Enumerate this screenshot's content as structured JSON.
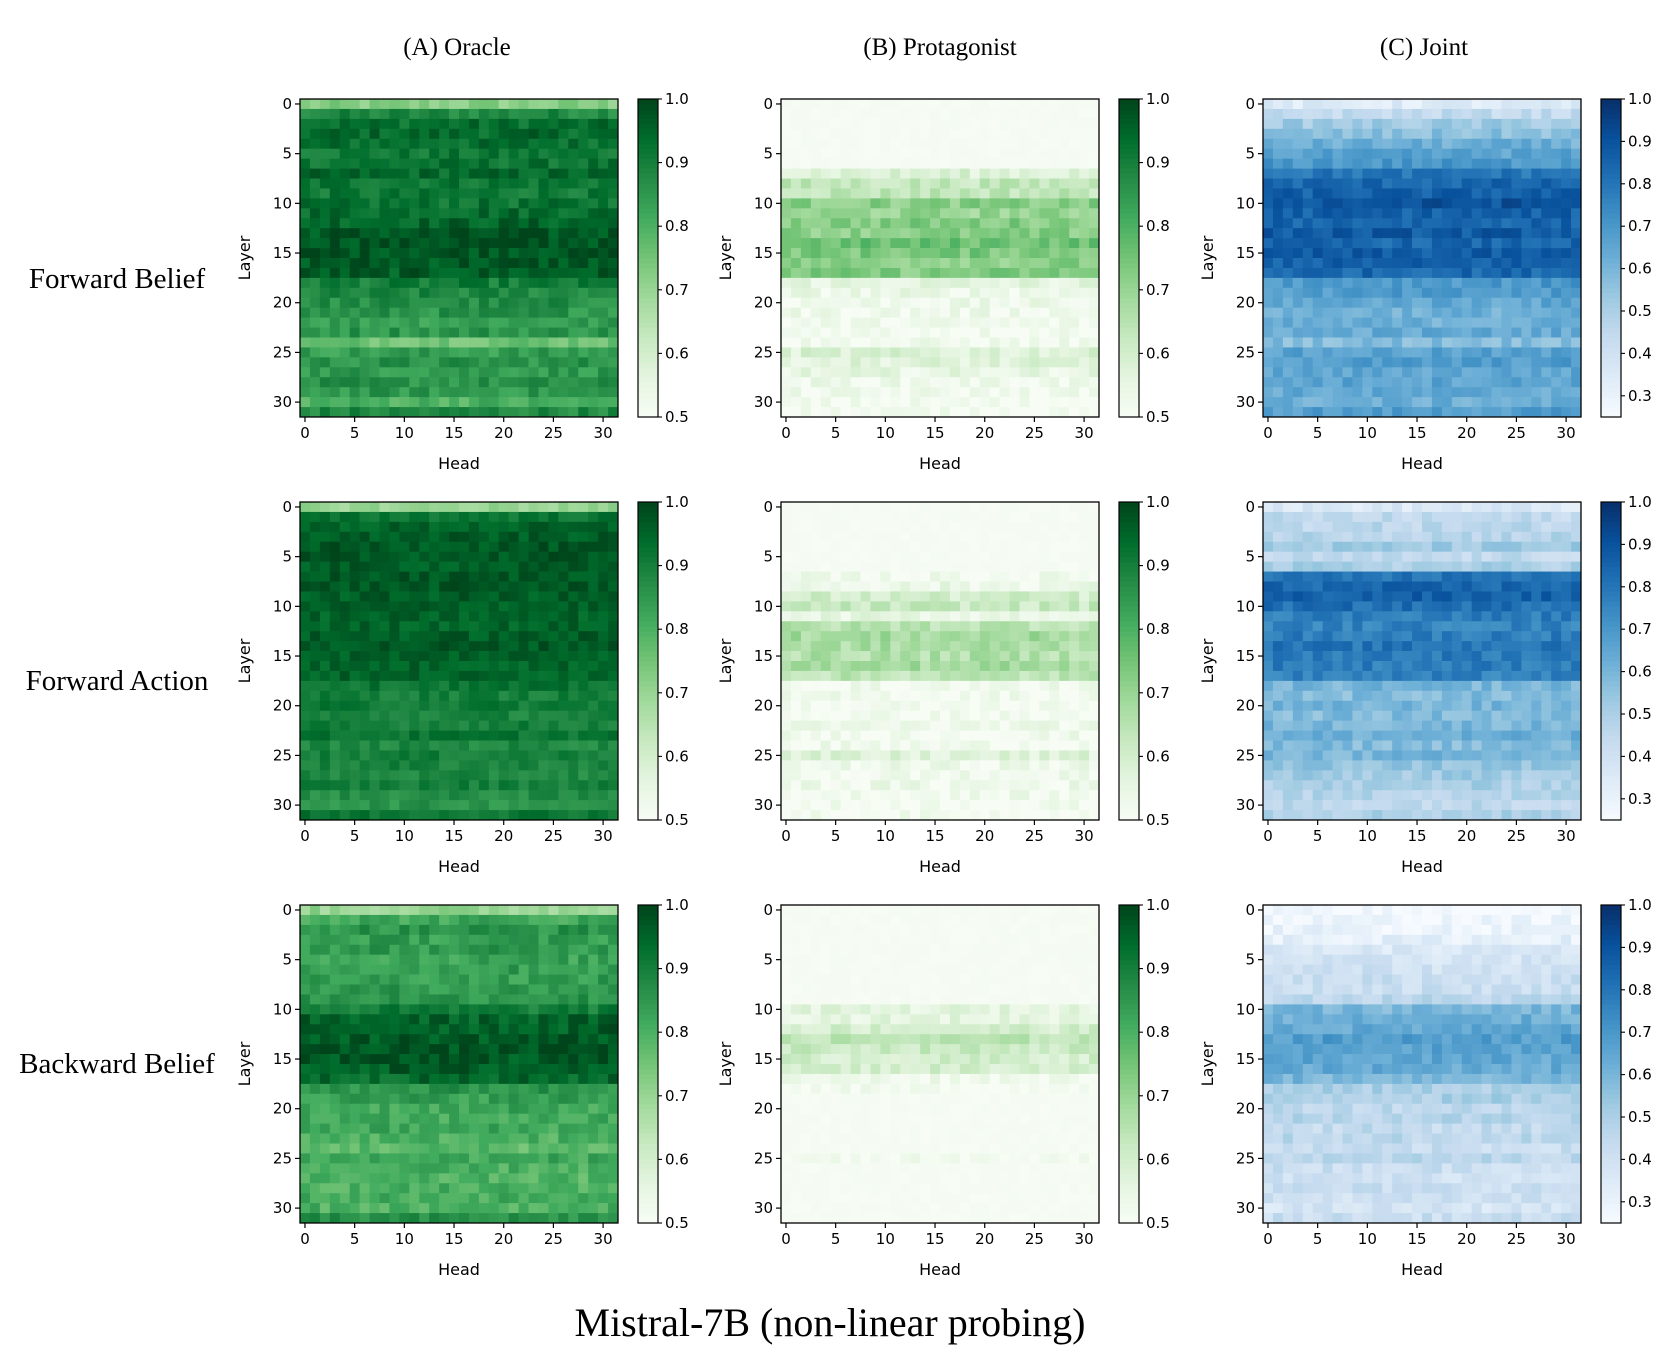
{
  "figure": {
    "title": "Mistral-7B (non-linear probing)",
    "columns": [
      "(A) Oracle",
      "(B) Protagonist",
      "(C) Joint"
    ],
    "rows": [
      "Forward Belief",
      "Forward Action",
      "Backward Belief"
    ]
  },
  "colors": {
    "greens": [
      "#f7fcf5",
      "#e5f5e0",
      "#c7e9c0",
      "#a1d99b",
      "#74c476",
      "#41ab5d",
      "#238b45",
      "#006d2c",
      "#00441b"
    ],
    "blues": [
      "#f7fbff",
      "#deebf7",
      "#c6dbef",
      "#9ecae1",
      "#6baed6",
      "#4292c6",
      "#2171b5",
      "#08519c",
      "#08306b"
    ]
  },
  "chart_data": [
    {
      "type": "heatmap",
      "row": "Forward Belief",
      "column": "(A) Oracle",
      "xlabel": "Head",
      "ylabel": "Layer",
      "xticks": [
        0,
        5,
        10,
        15,
        20,
        25,
        30
      ],
      "yticks": [
        0,
        5,
        10,
        15,
        20,
        25,
        30
      ],
      "colormap": "greens",
      "vmin": 0.5,
      "vmax": 1.0,
      "cbar_ticks": [
        "0.5",
        "0.6",
        "0.7",
        "0.8",
        "0.9",
        "1.0"
      ],
      "layer_means": [
        0.72,
        0.88,
        0.93,
        0.94,
        0.93,
        0.91,
        0.92,
        0.94,
        0.92,
        0.91,
        0.92,
        0.94,
        0.95,
        0.97,
        0.98,
        0.98,
        0.97,
        0.96,
        0.9,
        0.88,
        0.87,
        0.86,
        0.84,
        0.86,
        0.76,
        0.84,
        0.86,
        0.85,
        0.86,
        0.85,
        0.8,
        0.88
      ],
      "noise": 0.04
    },
    {
      "type": "heatmap",
      "row": "Forward Belief",
      "column": "(B) Protagonist",
      "xlabel": "Head",
      "ylabel": "Layer",
      "xticks": [
        0,
        5,
        10,
        15,
        20,
        25,
        30
      ],
      "yticks": [
        0,
        5,
        10,
        15,
        20,
        25,
        30
      ],
      "colormap": "greens",
      "vmin": 0.5,
      "vmax": 1.0,
      "cbar_ticks": [
        "0.5",
        "0.6",
        "0.7",
        "0.8",
        "0.9",
        "1.0"
      ],
      "layer_means": [
        0.5,
        0.5,
        0.5,
        0.5,
        0.5,
        0.5,
        0.5,
        0.58,
        0.63,
        0.64,
        0.72,
        0.7,
        0.73,
        0.72,
        0.76,
        0.74,
        0.72,
        0.73,
        0.56,
        0.54,
        0.53,
        0.53,
        0.52,
        0.52,
        0.52,
        0.58,
        0.57,
        0.55,
        0.53,
        0.52,
        0.51,
        0.51
      ],
      "noise": 0.04
    },
    {
      "type": "heatmap",
      "row": "Forward Belief",
      "column": "(C) Joint",
      "xlabel": "Head",
      "ylabel": "Layer",
      "xticks": [
        0,
        5,
        10,
        15,
        20,
        25,
        30
      ],
      "yticks": [
        0,
        5,
        10,
        15,
        20,
        25,
        30
      ],
      "colormap": "blues",
      "vmin": 0.25,
      "vmax": 1.0,
      "cbar_ticks": [
        "0.3",
        "0.4",
        "0.5",
        "0.6",
        "0.7",
        "0.8",
        "0.9",
        "1.0"
      ],
      "layer_means": [
        0.34,
        0.44,
        0.52,
        0.56,
        0.62,
        0.66,
        0.7,
        0.8,
        0.84,
        0.86,
        0.9,
        0.86,
        0.85,
        0.88,
        0.84,
        0.87,
        0.86,
        0.84,
        0.7,
        0.68,
        0.65,
        0.62,
        0.62,
        0.64,
        0.58,
        0.66,
        0.68,
        0.65,
        0.66,
        0.64,
        0.62,
        0.68
      ],
      "noise": 0.05
    },
    {
      "type": "heatmap",
      "row": "Forward Action",
      "column": "(A) Oracle",
      "xlabel": "Head",
      "ylabel": "Layer",
      "xticks": [
        0,
        5,
        10,
        15,
        20,
        25,
        30
      ],
      "yticks": [
        0,
        5,
        10,
        15,
        20,
        25,
        30
      ],
      "colormap": "greens",
      "vmin": 0.5,
      "vmax": 1.0,
      "cbar_ticks": [
        "0.5",
        "0.6",
        "0.7",
        "0.8",
        "0.9",
        "1.0"
      ],
      "layer_means": [
        0.7,
        0.92,
        0.95,
        0.96,
        0.97,
        0.97,
        0.96,
        0.97,
        0.97,
        0.96,
        0.96,
        0.95,
        0.95,
        0.96,
        0.97,
        0.96,
        0.95,
        0.95,
        0.92,
        0.9,
        0.91,
        0.89,
        0.9,
        0.92,
        0.88,
        0.9,
        0.89,
        0.88,
        0.9,
        0.87,
        0.86,
        0.92
      ],
      "noise": 0.03
    },
    {
      "type": "heatmap",
      "row": "Forward Action",
      "column": "(B) Protagonist",
      "xlabel": "Head",
      "ylabel": "Layer",
      "xticks": [
        0,
        5,
        10,
        15,
        20,
        25,
        30
      ],
      "yticks": [
        0,
        5,
        10,
        15,
        20,
        25,
        30
      ],
      "colormap": "greens",
      "vmin": 0.5,
      "vmax": 1.0,
      "cbar_ticks": [
        "0.5",
        "0.6",
        "0.7",
        "0.8",
        "0.9",
        "1.0"
      ],
      "layer_means": [
        0.5,
        0.5,
        0.5,
        0.5,
        0.5,
        0.5,
        0.5,
        0.52,
        0.54,
        0.6,
        0.62,
        0.55,
        0.65,
        0.68,
        0.67,
        0.66,
        0.68,
        0.64,
        0.52,
        0.52,
        0.51,
        0.51,
        0.53,
        0.52,
        0.52,
        0.57,
        0.53,
        0.52,
        0.53,
        0.52,
        0.51,
        0.51
      ],
      "noise": 0.04
    },
    {
      "type": "heatmap",
      "row": "Forward Action",
      "column": "(C) Joint",
      "xlabel": "Head",
      "ylabel": "Layer",
      "xticks": [
        0,
        5,
        10,
        15,
        20,
        25,
        30
      ],
      "yticks": [
        0,
        5,
        10,
        15,
        20,
        25,
        30
      ],
      "colormap": "blues",
      "vmin": 0.25,
      "vmax": 1.0,
      "cbar_ticks": [
        "0.3",
        "0.4",
        "0.5",
        "0.6",
        "0.7",
        "0.8",
        "0.9",
        "1.0"
      ],
      "layer_means": [
        0.36,
        0.44,
        0.46,
        0.48,
        0.52,
        0.44,
        0.5,
        0.8,
        0.84,
        0.86,
        0.82,
        0.78,
        0.76,
        0.78,
        0.8,
        0.79,
        0.78,
        0.76,
        0.6,
        0.58,
        0.6,
        0.58,
        0.6,
        0.62,
        0.58,
        0.6,
        0.55,
        0.52,
        0.5,
        0.48,
        0.46,
        0.5
      ],
      "noise": 0.05
    },
    {
      "type": "heatmap",
      "row": "Backward Belief",
      "column": "(A) Oracle",
      "xlabel": "Head",
      "ylabel": "Layer",
      "xticks": [
        0,
        5,
        10,
        15,
        20,
        25,
        30
      ],
      "yticks": [
        0,
        5,
        10,
        15,
        20,
        25,
        30
      ],
      "colormap": "greens",
      "vmin": 0.5,
      "vmax": 1.0,
      "cbar_ticks": [
        "0.5",
        "0.6",
        "0.7",
        "0.8",
        "0.9",
        "1.0"
      ],
      "layer_means": [
        0.7,
        0.82,
        0.86,
        0.84,
        0.85,
        0.83,
        0.84,
        0.84,
        0.85,
        0.86,
        0.9,
        0.95,
        0.96,
        0.97,
        0.98,
        0.97,
        0.96,
        0.94,
        0.86,
        0.84,
        0.82,
        0.81,
        0.82,
        0.8,
        0.78,
        0.82,
        0.8,
        0.79,
        0.8,
        0.81,
        0.8,
        0.86
      ],
      "noise": 0.04
    },
    {
      "type": "heatmap",
      "row": "Backward Belief",
      "column": "(B) Protagonist",
      "xlabel": "Head",
      "ylabel": "Layer",
      "xticks": [
        0,
        5,
        10,
        15,
        20,
        25,
        30
      ],
      "yticks": [
        0,
        5,
        10,
        15,
        20,
        25,
        30
      ],
      "colormap": "greens",
      "vmin": 0.5,
      "vmax": 1.0,
      "cbar_ticks": [
        "0.5",
        "0.6",
        "0.7",
        "0.8",
        "0.9",
        "1.0"
      ],
      "layer_means": [
        0.5,
        0.5,
        0.5,
        0.5,
        0.5,
        0.5,
        0.5,
        0.5,
        0.5,
        0.5,
        0.56,
        0.56,
        0.6,
        0.64,
        0.62,
        0.6,
        0.6,
        0.53,
        0.51,
        0.5,
        0.5,
        0.5,
        0.5,
        0.5,
        0.5,
        0.51,
        0.5,
        0.5,
        0.5,
        0.5,
        0.5,
        0.5
      ],
      "noise": 0.035
    },
    {
      "type": "heatmap",
      "row": "Backward Belief",
      "column": "(C) Joint",
      "xlabel": "Head",
      "ylabel": "Layer",
      "xticks": [
        0,
        5,
        10,
        15,
        20,
        25,
        30
      ],
      "yticks": [
        0,
        5,
        10,
        15,
        20,
        25,
        30
      ],
      "colormap": "blues",
      "vmin": 0.25,
      "vmax": 1.0,
      "cbar_ticks": [
        "0.3",
        "0.4",
        "0.5",
        "0.6",
        "0.7",
        "0.8",
        "0.9",
        "1.0"
      ],
      "layer_means": [
        0.26,
        0.28,
        0.3,
        0.32,
        0.36,
        0.38,
        0.4,
        0.42,
        0.42,
        0.46,
        0.6,
        0.62,
        0.64,
        0.68,
        0.66,
        0.65,
        0.64,
        0.6,
        0.5,
        0.5,
        0.46,
        0.48,
        0.44,
        0.46,
        0.42,
        0.46,
        0.42,
        0.4,
        0.42,
        0.4,
        0.38,
        0.42
      ],
      "noise": 0.05
    }
  ]
}
